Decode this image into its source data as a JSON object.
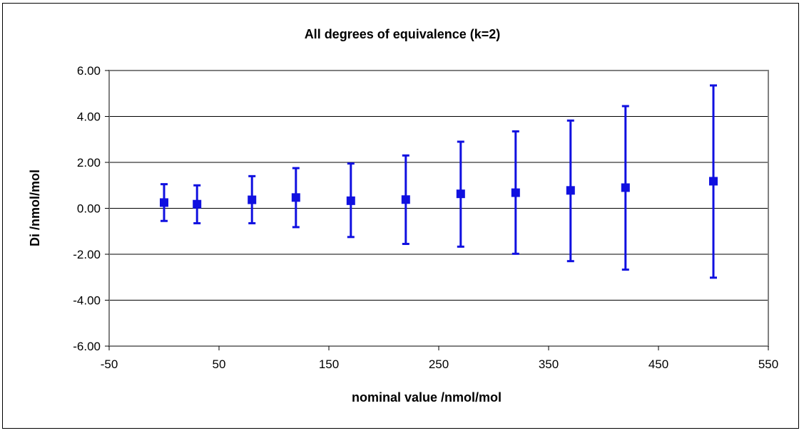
{
  "chart_data": {
    "type": "scatter",
    "title": "All degrees of equivalence (k=2)",
    "xlabel": "nominal value /nmol/mol",
    "ylabel": "Di /nmol/mol",
    "xlim": [
      -50,
      550
    ],
    "ylim": [
      -6,
      6
    ],
    "x_ticks": [
      "-50",
      "50",
      "150",
      "250",
      "350",
      "450",
      "550"
    ],
    "y_ticks": [
      "6.00",
      "4.00",
      "2.00",
      "0.00",
      "-2.00",
      "-4.00",
      "-6.00"
    ],
    "grid": "horizontal",
    "legend": "none",
    "series_color": "#1010e0",
    "points": [
      {
        "x": 0,
        "y": 0.25,
        "err_low": -0.55,
        "err_high": 1.05
      },
      {
        "x": 30,
        "y": 0.18,
        "err_low": -0.65,
        "err_high": 1.0
      },
      {
        "x": 80,
        "y": 0.37,
        "err_low": -0.65,
        "err_high": 1.4
      },
      {
        "x": 120,
        "y": 0.47,
        "err_low": -0.82,
        "err_high": 1.75
      },
      {
        "x": 170,
        "y": 0.33,
        "err_low": -1.25,
        "err_high": 1.95
      },
      {
        "x": 220,
        "y": 0.38,
        "err_low": -1.55,
        "err_high": 2.3
      },
      {
        "x": 270,
        "y": 0.63,
        "err_low": -1.67,
        "err_high": 2.9
      },
      {
        "x": 320,
        "y": 0.68,
        "err_low": -1.98,
        "err_high": 3.35
      },
      {
        "x": 370,
        "y": 0.78,
        "err_low": -2.3,
        "err_high": 3.82
      },
      {
        "x": 420,
        "y": 0.9,
        "err_low": -2.67,
        "err_high": 4.45
      },
      {
        "x": 500,
        "y": 1.18,
        "err_low": -3.02,
        "err_high": 5.35
      }
    ]
  }
}
